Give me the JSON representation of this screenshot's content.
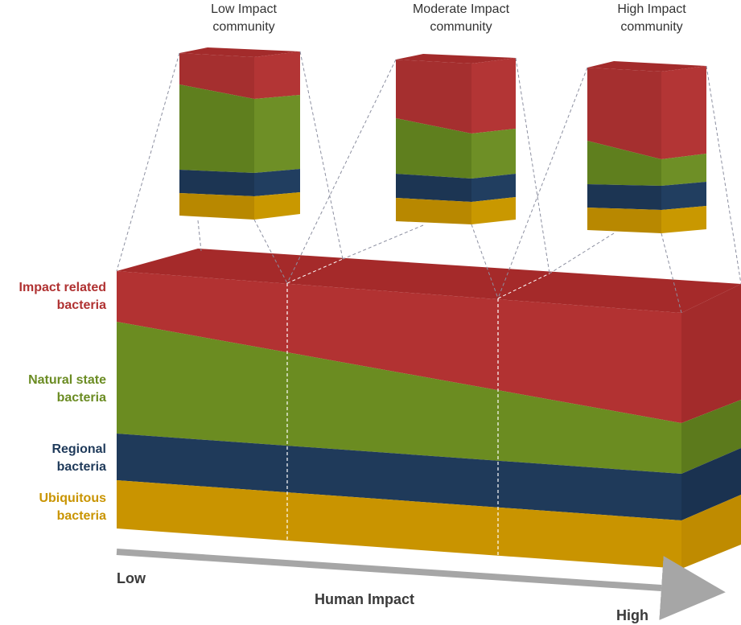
{
  "communities": [
    {
      "title_line1": "Low Impact",
      "title_line2": "community"
    },
    {
      "title_line1": "Moderate Impact",
      "title_line2": "community"
    },
    {
      "title_line1": "High Impact",
      "title_line2": "community"
    }
  ],
  "layers": [
    {
      "key": "impact",
      "label_line1": "Impact related",
      "label_line2": "bacteria",
      "color": "#b03232"
    },
    {
      "key": "natural",
      "label_line1": "Natural state",
      "label_line2": "bacteria",
      "color": "#6b8c23"
    },
    {
      "key": "regional",
      "label_line1": "Regional",
      "label_line2": "bacteria",
      "color": "#1f3a5a"
    },
    {
      "key": "ubiquitous",
      "label_line1": "Ubiquitous",
      "label_line2": "bacteria",
      "color": "#c99400"
    }
  ],
  "axis": {
    "low": "Low",
    "title": "Human Impact",
    "high": "High"
  }
}
